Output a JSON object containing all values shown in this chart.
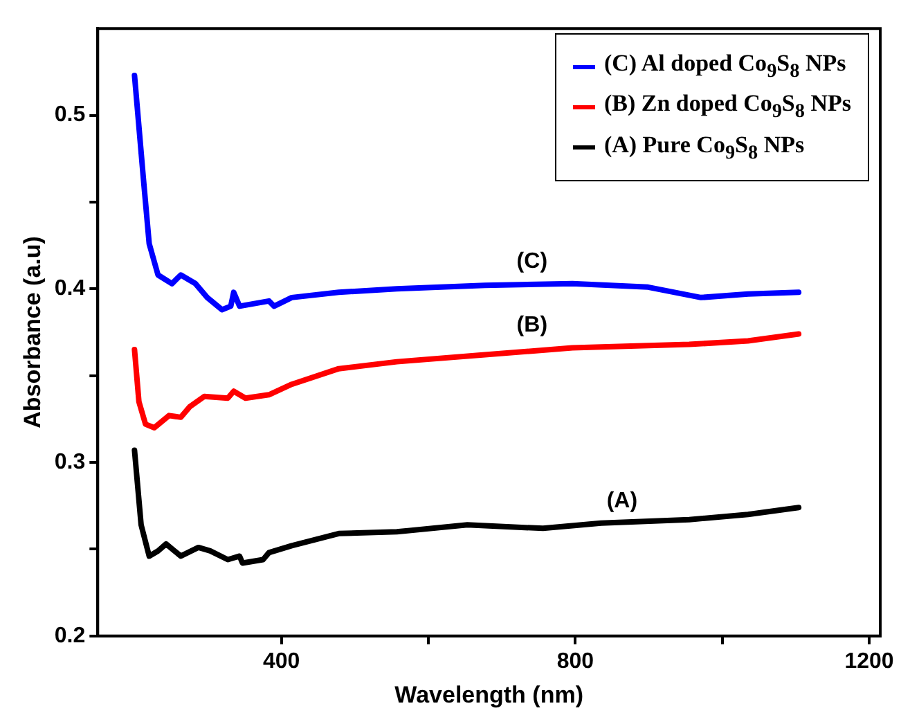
{
  "chart_data": {
    "type": "line",
    "xlabel": "Wavelength (nm)",
    "ylabel": "Absorbance (a.u)",
    "xlim": [
      150,
      1215
    ],
    "xticks": [
      400,
      {
        "value": 600,
        "label": null
      },
      800,
      {
        "value": 1000,
        "label": null
      },
      1200
    ],
    "ylim": [
      0.2,
      0.55
    ],
    "yticks": [
      0.2,
      {
        "value": 0.25,
        "label": null
      },
      0.3,
      {
        "value": 0.35,
        "label": null
      },
      0.4,
      {
        "value": 0.45,
        "label": null
      },
      0.5
    ],
    "legend": "top right",
    "marker": "none",
    "line_style": "solid",
    "series": [
      {
        "name": "(C) Al doped Co$_{9}$S$_{8}$ NPs",
        "color": "#0000ff",
        "x": [
          200,
          212,
          220,
          232,
          251,
          263,
          283,
          299,
          319,
          331,
          335,
          343,
          383,
          390,
          414,
          478,
          557,
          677,
          796,
          899,
          971,
          1035,
          1104
        ],
        "values": [
          0.523,
          0.464,
          0.426,
          0.408,
          0.403,
          0.408,
          0.403,
          0.395,
          0.388,
          0.39,
          0.398,
          0.39,
          0.393,
          0.39,
          0.395,
          0.398,
          0.4,
          0.402,
          0.403,
          0.401,
          0.395,
          0.397,
          0.398
        ]
      },
      {
        "name": "(B) Zn doped Co$_{9}$S$_{8}$ NPs",
        "color": "#ff0000",
        "x": [
          200,
          206,
          215,
          227,
          247,
          263,
          275,
          295,
          327,
          335,
          351,
          383,
          414,
          478,
          557,
          677,
          796,
          955,
          1035,
          1104
        ],
        "values": [
          0.365,
          0.335,
          0.322,
          0.32,
          0.327,
          0.326,
          0.332,
          0.338,
          0.337,
          0.341,
          0.337,
          0.339,
          0.345,
          0.354,
          0.358,
          0.362,
          0.366,
          0.368,
          0.37,
          0.374
        ]
      },
      {
        "name": "(A) Pure Co$_{9}$S$_{8}$ NPs",
        "color": "#000000",
        "x": [
          200,
          209,
          220,
          232,
          243,
          263,
          287,
          303,
          327,
          343,
          347,
          375,
          383,
          414,
          478,
          557,
          653,
          756,
          835,
          955,
          1035,
          1104
        ],
        "values": [
          0.307,
          0.264,
          0.246,
          0.249,
          0.253,
          0.246,
          0.251,
          0.249,
          0.244,
          0.246,
          0.242,
          0.244,
          0.248,
          0.252,
          0.259,
          0.26,
          0.264,
          0.262,
          0.265,
          0.267,
          0.27,
          0.274
        ]
      }
    ],
    "annotations": [
      "(C)",
      "(B)",
      "(A)"
    ]
  }
}
